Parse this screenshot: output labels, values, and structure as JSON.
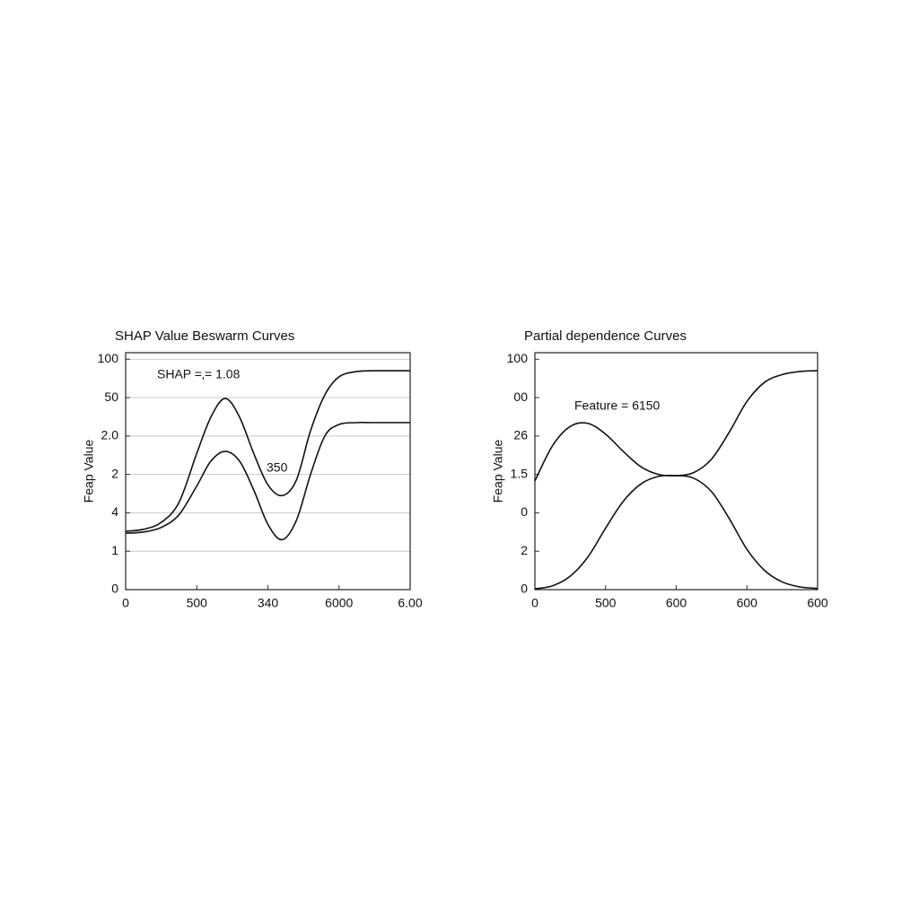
{
  "chart_data": [
    {
      "type": "line",
      "title": "SHAP Value Beswarm Curves",
      "y_label": "Feap Value",
      "annotations": [
        "SHAP =‚= 1.08",
        "350"
      ],
      "x": [
        0,
        0.25,
        0.5,
        0.75,
        1,
        1.2,
        1.4,
        1.6,
        1.8,
        2,
        2.2,
        2.4,
        2.6,
        2.8,
        3,
        3.25,
        3.5,
        4
      ],
      "series": [
        {
          "color": "#111111",
          "values": [
            1.52,
            1.57,
            1.75,
            2.27,
            3.55,
            4.5,
            4.98,
            4.5,
            3.55,
            2.73,
            2.45,
            2.85,
            4.14,
            5.07,
            5.54,
            5.68,
            5.7,
            5.7
          ]
        },
        {
          "color": "#111111",
          "values": [
            1.47,
            1.5,
            1.62,
            1.95,
            2.7,
            3.35,
            3.6,
            3.35,
            2.6,
            1.7,
            1.3,
            1.8,
            3.0,
            4.0,
            4.3,
            4.35,
            4.35,
            4.35
          ]
        }
      ],
      "xlim": [
        0,
        4
      ],
      "ylim": [
        0,
        6.17
      ],
      "xticks": [
        0,
        {
          "value": 1,
          "label": "500"
        },
        {
          "value": 2,
          "label": "340"
        },
        {
          "value": 3,
          "label": "6000"
        },
        {
          "value": 4,
          "label": "6.00"
        }
      ],
      "yticks": [
        {
          "value": 6,
          "label": "100"
        },
        {
          "value": 5,
          "label": "50"
        },
        {
          "value": 4,
          "label": "2.0"
        },
        {
          "value": 3,
          "label": "2"
        },
        {
          "value": 2,
          "label": "4"
        },
        1,
        0
      ],
      "grid": true
    },
    {
      "type": "line",
      "title": "Partial dependence Curves",
      "y_label": "Feap Value",
      "annotations": [
        "Feature = 6150"
      ],
      "x": [
        0,
        0.25,
        0.5,
        0.75,
        1,
        1.25,
        1.5,
        1.75,
        2,
        2.25,
        2.5,
        2.75,
        3,
        3.25,
        3.5,
        3.75,
        4
      ],
      "series": [
        {
          "color": "#111111",
          "values": [
            2.83,
            3.75,
            4.25,
            4.33,
            4.05,
            3.6,
            3.2,
            3.0,
            2.97,
            3.05,
            3.4,
            4.1,
            4.9,
            5.4,
            5.6,
            5.68,
            5.7
          ]
        },
        {
          "color": "#111111",
          "values": [
            0.02,
            0.1,
            0.35,
            0.85,
            1.6,
            2.3,
            2.75,
            2.95,
            2.97,
            2.9,
            2.55,
            1.85,
            1.05,
            0.5,
            0.2,
            0.07,
            0.03
          ]
        }
      ],
      "xlim": [
        0,
        4
      ],
      "ylim": [
        0,
        6.17
      ],
      "xticks": [
        0,
        {
          "value": 1,
          "label": "500"
        },
        {
          "value": 2,
          "label": "600"
        },
        {
          "value": 3,
          "label": "600"
        },
        {
          "value": 4,
          "label": "600"
        }
      ],
      "yticks": [
        {
          "value": 6,
          "label": "100"
        },
        {
          "value": 5,
          "label": "00"
        },
        {
          "value": 4,
          "label": "26"
        },
        {
          "value": 3,
          "label": "1.5"
        },
        {
          "value": 2,
          "label": "0"
        },
        {
          "value": 1,
          "label": "2"
        },
        0
      ],
      "grid": false
    }
  ]
}
